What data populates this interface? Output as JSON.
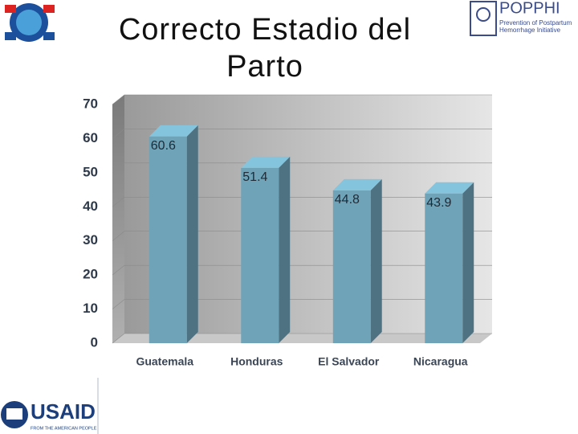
{
  "chart_data": {
    "type": "bar3d",
    "title": "Correcto Estadio del Parto",
    "categories": [
      "Guatemala",
      "Honduras",
      "El Salvador",
      "Nicaragua"
    ],
    "values": [
      60.6,
      51.4,
      44.8,
      43.9
    ],
    "color": "#6fa3b8",
    "ylim": [
      0,
      70
    ],
    "yticks": [
      0,
      10,
      20,
      30,
      40,
      50,
      60,
      70
    ],
    "grid": true
  },
  "logos": {
    "popphi": "POPPHI",
    "popphi_tagline": "Prevention of Postpartum Hemorrhage Initiative",
    "usaid": "USAID",
    "usaid_tagline": "FROM THE AMERICAN PEOPLE"
  }
}
